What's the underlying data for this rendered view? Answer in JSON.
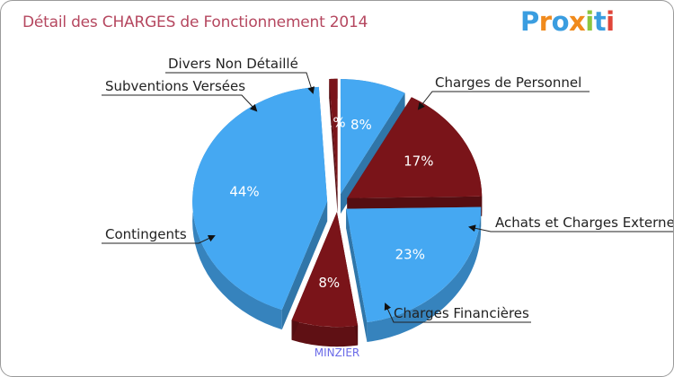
{
  "header": {
    "title": "Détail des CHARGES de Fonctionnement 2014",
    "logo_letters": [
      {
        "ch": "P",
        "color": "#3a9de0"
      },
      {
        "ch": "r",
        "color": "#f08a1c"
      },
      {
        "ch": "o",
        "color": "#3a9de0"
      },
      {
        "ch": "x",
        "color": "#f08a1c"
      },
      {
        "ch": "i",
        "color": "#8cc63f"
      },
      {
        "ch": "t",
        "color": "#3a9de0"
      },
      {
        "ch": "i",
        "color": "#e0453a"
      }
    ]
  },
  "footer": {
    "text": "MINZIER"
  },
  "chart_data": {
    "type": "pie",
    "title": "Détail des CHARGES de Fonctionnement 2014",
    "slices": [
      {
        "label": "Divers Non Détaillé",
        "value": 8,
        "display": "8%",
        "color": "#45a8f2"
      },
      {
        "label": "Charges de Personnel",
        "value": 17,
        "display": "17%",
        "color": "#7a1419"
      },
      {
        "label": "Achats et Charges Externes",
        "value": 23,
        "display": "23%",
        "color": "#45a8f2"
      },
      {
        "label": "Charges Financières",
        "value": 8,
        "display": "8%",
        "color": "#7a1419"
      },
      {
        "label": "Contingents",
        "value": 44,
        "display": "44%",
        "color": "#45a8f2"
      },
      {
        "label": "Subventions Versées",
        "value": 1,
        "display": "1%",
        "color": "#7a1419"
      }
    ]
  }
}
